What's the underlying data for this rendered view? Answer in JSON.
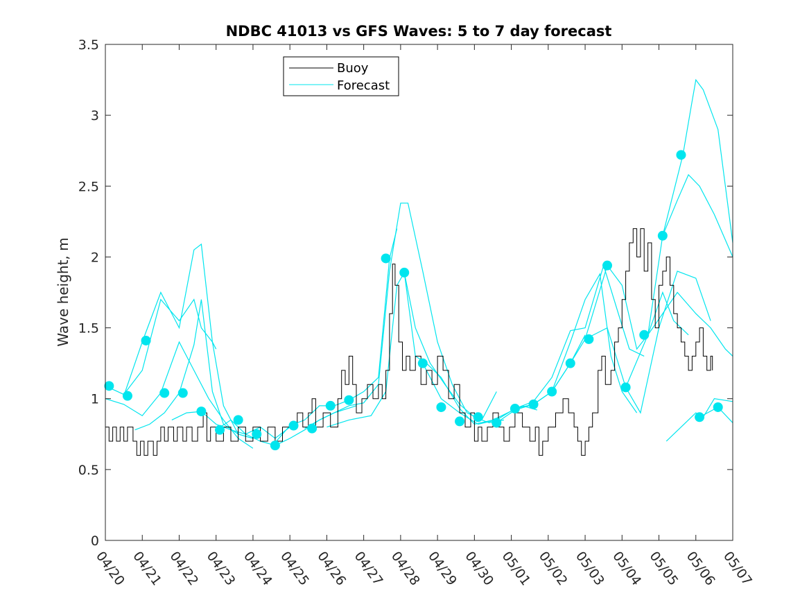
{
  "chart_data": {
    "type": "line",
    "title": "NDBC 41013 vs GFS Waves: 5 to 7 day forecast",
    "xlabel": "",
    "ylabel": "Wave height, m",
    "ylim": [
      0,
      3.5
    ],
    "yticks": [
      "0",
      "0.5",
      "1",
      "1.5",
      "2",
      "2.5",
      "3",
      "3.5"
    ],
    "xlim_days": [
      0,
      17
    ],
    "xticks": [
      "04/20",
      "04/21",
      "04/22",
      "04/23",
      "04/24",
      "04/25",
      "04/26",
      "04/27",
      "04/28",
      "04/29",
      "04/30",
      "05/01",
      "05/02",
      "05/03",
      "05/04",
      "05/05",
      "05/06",
      "05/07"
    ],
    "legend": {
      "position": "top-left",
      "entries": [
        {
          "name": "Buoy",
          "color": "#000000"
        },
        {
          "name": "Forecast",
          "color": "#00e5ee"
        }
      ]
    },
    "colors": {
      "buoy": "#000000",
      "forecast": "#00e5ee",
      "markers": "#00e5ee"
    },
    "buoy": [
      [
        0.0,
        0.8
      ],
      [
        0.1,
        0.7
      ],
      [
        0.2,
        0.8
      ],
      [
        0.3,
        0.7
      ],
      [
        0.4,
        0.8
      ],
      [
        0.5,
        0.7
      ],
      [
        0.6,
        0.8
      ],
      [
        0.75,
        0.7
      ],
      [
        0.85,
        0.6
      ],
      [
        0.95,
        0.7
      ],
      [
        1.05,
        0.6
      ],
      [
        1.15,
        0.7
      ],
      [
        1.3,
        0.6
      ],
      [
        1.4,
        0.7
      ],
      [
        1.5,
        0.8
      ],
      [
        1.6,
        0.7
      ],
      [
        1.7,
        0.8
      ],
      [
        1.85,
        0.7
      ],
      [
        1.95,
        0.8
      ],
      [
        2.1,
        0.7
      ],
      [
        2.2,
        0.8
      ],
      [
        2.35,
        0.7
      ],
      [
        2.5,
        0.8
      ],
      [
        2.65,
        0.9
      ],
      [
        2.75,
        0.7
      ],
      [
        2.85,
        0.8
      ],
      [
        3.0,
        0.7
      ],
      [
        3.2,
        0.8
      ],
      [
        3.4,
        0.7
      ],
      [
        3.6,
        0.8
      ],
      [
        3.8,
        0.7
      ],
      [
        4.0,
        0.8
      ],
      [
        4.2,
        0.7
      ],
      [
        4.4,
        0.8
      ],
      [
        4.6,
        0.7
      ],
      [
        4.8,
        0.8
      ],
      [
        5.0,
        0.8
      ],
      [
        5.2,
        0.9
      ],
      [
        5.35,
        0.8
      ],
      [
        5.5,
        0.9
      ],
      [
        5.6,
        1.0
      ],
      [
        5.7,
        0.8
      ],
      [
        5.9,
        0.9
      ],
      [
        6.1,
        0.8
      ],
      [
        6.3,
        1.0
      ],
      [
        6.4,
        1.2
      ],
      [
        6.5,
        1.1
      ],
      [
        6.6,
        1.3
      ],
      [
        6.7,
        1.1
      ],
      [
        6.8,
        0.9
      ],
      [
        6.95,
        1.0
      ],
      [
        7.1,
        1.1
      ],
      [
        7.25,
        1.0
      ],
      [
        7.4,
        1.1
      ],
      [
        7.5,
        1.0
      ],
      [
        7.6,
        1.2
      ],
      [
        7.7,
        1.6
      ],
      [
        7.78,
        1.95
      ],
      [
        7.85,
        1.8
      ],
      [
        7.95,
        1.4
      ],
      [
        8.05,
        1.2
      ],
      [
        8.15,
        1.3
      ],
      [
        8.25,
        1.2
      ],
      [
        8.4,
        1.3
      ],
      [
        8.55,
        1.1
      ],
      [
        8.7,
        1.2
      ],
      [
        8.85,
        1.1
      ],
      [
        9.0,
        1.3
      ],
      [
        9.15,
        1.2
      ],
      [
        9.3,
        1.0
      ],
      [
        9.45,
        1.1
      ],
      [
        9.6,
        0.9
      ],
      [
        9.75,
        0.8
      ],
      [
        9.9,
        0.9
      ],
      [
        10.0,
        0.7
      ],
      [
        10.1,
        0.8
      ],
      [
        10.2,
        0.7
      ],
      [
        10.35,
        0.8
      ],
      [
        10.5,
        0.9
      ],
      [
        10.65,
        0.8
      ],
      [
        10.8,
        0.7
      ],
      [
        10.95,
        0.8
      ],
      [
        11.1,
        0.9
      ],
      [
        11.3,
        0.8
      ],
      [
        11.5,
        0.7
      ],
      [
        11.65,
        0.8
      ],
      [
        11.75,
        0.6
      ],
      [
        11.85,
        0.7
      ],
      [
        12.0,
        0.8
      ],
      [
        12.2,
        0.9
      ],
      [
        12.4,
        1.0
      ],
      [
        12.55,
        0.9
      ],
      [
        12.7,
        0.8
      ],
      [
        12.8,
        0.7
      ],
      [
        12.9,
        0.6
      ],
      [
        13.0,
        0.7
      ],
      [
        13.1,
        0.8
      ],
      [
        13.2,
        0.9
      ],
      [
        13.35,
        1.2
      ],
      [
        13.45,
        1.3
      ],
      [
        13.55,
        1.1
      ],
      [
        13.7,
        1.2
      ],
      [
        13.8,
        1.4
      ],
      [
        13.9,
        1.5
      ],
      [
        14.0,
        1.7
      ],
      [
        14.1,
        1.9
      ],
      [
        14.2,
        2.1
      ],
      [
        14.3,
        2.2
      ],
      [
        14.4,
        2.0
      ],
      [
        14.5,
        2.2
      ],
      [
        14.6,
        1.9
      ],
      [
        14.7,
        2.1
      ],
      [
        14.8,
        1.7
      ],
      [
        14.9,
        1.5
      ],
      [
        15.0,
        1.8
      ],
      [
        15.1,
        1.9
      ],
      [
        15.2,
        2.0
      ],
      [
        15.3,
        1.8
      ],
      [
        15.4,
        1.6
      ],
      [
        15.5,
        1.5
      ],
      [
        15.6,
        1.4
      ],
      [
        15.7,
        1.3
      ],
      [
        15.8,
        1.2
      ],
      [
        15.9,
        1.3
      ],
      [
        16.0,
        1.4
      ],
      [
        16.1,
        1.5
      ],
      [
        16.2,
        1.3
      ],
      [
        16.3,
        1.2
      ],
      [
        16.4,
        1.3
      ],
      [
        16.45,
        1.2
      ]
    ],
    "forecast_series": [
      [
        [
          0.0,
          1.09
        ],
        [
          0.5,
          1.03
        ],
        [
          1.0,
          1.2
        ],
        [
          1.5,
          1.7
        ],
        [
          2.0,
          1.55
        ],
        [
          2.4,
          1.7
        ],
        [
          2.6,
          1.5
        ],
        [
          2.9,
          1.4
        ],
        [
          3.0,
          1.35
        ]
      ],
      [
        [
          0.5,
          1.02
        ],
        [
          1.0,
          1.4
        ],
        [
          1.5,
          1.75
        ],
        [
          2.0,
          1.5
        ],
        [
          2.4,
          2.05
        ],
        [
          2.6,
          2.09
        ],
        [
          2.9,
          1.4
        ],
        [
          3.2,
          0.95
        ],
        [
          3.6,
          0.75
        ],
        [
          4.0,
          0.72
        ]
      ],
      [
        [
          0.0,
          1.0
        ],
        [
          0.5,
          0.96
        ],
        [
          1.0,
          0.88
        ],
        [
          1.5,
          1.04
        ],
        [
          2.0,
          1.4
        ],
        [
          2.4,
          1.2
        ],
        [
          2.8,
          1.0
        ],
        [
          3.2,
          0.85
        ],
        [
          3.6,
          0.72
        ],
        [
          4.0,
          0.65
        ]
      ],
      [
        [
          0.8,
          0.78
        ],
        [
          1.2,
          0.82
        ],
        [
          1.6,
          0.9
        ],
        [
          2.0,
          1.04
        ],
        [
          2.4,
          1.38
        ],
        [
          2.6,
          1.7
        ],
        [
          2.9,
          1.05
        ],
        [
          3.2,
          0.82
        ],
        [
          3.6,
          0.75
        ],
        [
          4.0,
          0.72
        ]
      ],
      [
        [
          1.8,
          0.85
        ],
        [
          2.2,
          0.9
        ],
        [
          2.6,
          0.91
        ],
        [
          3.0,
          0.82
        ],
        [
          3.4,
          0.78
        ],
        [
          3.8,
          0.75
        ],
        [
          4.2,
          0.8
        ],
        [
          4.6,
          0.72
        ],
        [
          5.0,
          0.8
        ]
      ],
      [
        [
          3.0,
          0.78
        ],
        [
          3.4,
          0.85
        ],
        [
          3.8,
          0.75
        ],
        [
          4.2,
          0.7
        ],
        [
          4.6,
          0.67
        ],
        [
          5.0,
          0.72
        ],
        [
          5.4,
          0.78
        ],
        [
          5.8,
          0.85
        ],
        [
          6.2,
          0.9
        ],
        [
          6.8,
          0.95
        ]
      ],
      [
        [
          4.6,
          0.69
        ],
        [
          5.0,
          0.81
        ],
        [
          5.4,
          0.85
        ],
        [
          5.8,
          0.95
        ],
        [
          6.2,
          0.95
        ],
        [
          6.6,
          0.99
        ],
        [
          7.0,
          1.05
        ],
        [
          7.4,
          1.15
        ],
        [
          7.7,
          1.99
        ],
        [
          7.9,
          2.2
        ]
      ],
      [
        [
          5.4,
          0.79
        ],
        [
          5.8,
          0.85
        ],
        [
          6.2,
          0.9
        ],
        [
          6.6,
          0.95
        ],
        [
          7.0,
          0.97
        ],
        [
          7.4,
          1.1
        ],
        [
          7.7,
          1.9
        ],
        [
          8.0,
          2.38
        ],
        [
          8.2,
          2.38
        ],
        [
          8.6,
          1.9
        ],
        [
          9.0,
          1.4
        ],
        [
          9.4,
          1.1
        ],
        [
          9.8,
          0.9
        ],
        [
          10.2,
          0.85
        ],
        [
          10.6,
          1.05
        ]
      ],
      [
        [
          6.0,
          0.8
        ],
        [
          6.6,
          0.85
        ],
        [
          7.2,
          0.88
        ],
        [
          7.6,
          1.05
        ],
        [
          7.9,
          1.8
        ],
        [
          8.1,
          1.89
        ],
        [
          8.4,
          1.5
        ],
        [
          8.8,
          1.25
        ],
        [
          9.2,
          1.1
        ],
        [
          9.6,
          0.96
        ],
        [
          10.0,
          0.87
        ],
        [
          10.4,
          0.83
        ],
        [
          10.8,
          0.85
        ]
      ],
      [
        [
          8.1,
          1.89
        ],
        [
          8.4,
          1.3
        ],
        [
          8.7,
          1.25
        ],
        [
          9.1,
          1.15
        ],
        [
          9.6,
          0.93
        ],
        [
          10.0,
          0.82
        ],
        [
          10.5,
          0.85
        ],
        [
          10.9,
          0.9
        ],
        [
          11.3,
          0.95
        ],
        [
          11.7,
          0.92
        ]
      ],
      [
        [
          8.6,
          1.25
        ],
        [
          9.1,
          1.0
        ],
        [
          9.6,
          0.9
        ],
        [
          10.1,
          0.82
        ],
        [
          10.6,
          0.85
        ],
        [
          11.1,
          0.93
        ],
        [
          11.6,
          0.96
        ],
        [
          12.1,
          1.05
        ],
        [
          12.6,
          1.25
        ],
        [
          13.0,
          1.45
        ]
      ],
      [
        [
          10.6,
          0.83
        ],
        [
          11.1,
          0.92
        ],
        [
          11.6,
          0.96
        ],
        [
          12.1,
          1.05
        ],
        [
          12.6,
          1.4
        ],
        [
          13.0,
          1.7
        ],
        [
          13.4,
          1.88
        ],
        [
          13.7,
          1.3
        ],
        [
          14.0,
          1.05
        ],
        [
          14.4,
          0.9
        ]
      ],
      [
        [
          11.1,
          0.93
        ],
        [
          11.6,
          0.98
        ],
        [
          12.1,
          1.15
        ],
        [
          12.6,
          1.48
        ],
        [
          13.0,
          1.5
        ],
        [
          13.5,
          1.94
        ],
        [
          13.9,
          1.6
        ],
        [
          14.2,
          1.35
        ],
        [
          14.6,
          1.3
        ]
      ],
      [
        [
          12.1,
          1.05
        ],
        [
          12.6,
          1.25
        ],
        [
          13.0,
          1.42
        ],
        [
          13.6,
          1.94
        ],
        [
          14.0,
          1.8
        ],
        [
          14.4,
          1.35
        ],
        [
          14.7,
          1.45
        ],
        [
          15.1,
          1.75
        ],
        [
          15.4,
          1.55
        ],
        [
          15.8,
          1.45
        ]
      ],
      [
        [
          13.0,
          1.42
        ],
        [
          13.6,
          1.5
        ],
        [
          14.1,
          1.08
        ],
        [
          14.5,
          0.9
        ],
        [
          15.0,
          1.5
        ],
        [
          15.5,
          1.9
        ],
        [
          16.0,
          1.85
        ],
        [
          16.4,
          1.55
        ]
      ],
      [
        [
          14.1,
          1.08
        ],
        [
          14.7,
          1.45
        ],
        [
          15.1,
          1.6
        ],
        [
          15.5,
          1.75
        ],
        [
          16.0,
          1.6
        ],
        [
          16.4,
          1.5
        ],
        [
          16.8,
          1.35
        ],
        [
          17.0,
          1.3
        ]
      ],
      [
        [
          14.7,
          1.45
        ],
        [
          15.1,
          2.15
        ],
        [
          15.5,
          2.4
        ],
        [
          15.8,
          2.58
        ],
        [
          16.1,
          2.5
        ],
        [
          16.5,
          2.3
        ],
        [
          17.0,
          2.0
        ]
      ],
      [
        [
          15.1,
          2.15
        ],
        [
          15.65,
          2.72
        ],
        [
          15.9,
          3.1
        ],
        [
          16.0,
          3.25
        ],
        [
          16.2,
          3.18
        ],
        [
          16.6,
          2.9
        ],
        [
          17.0,
          2.1
        ]
      ],
      [
        [
          15.2,
          0.7
        ],
        [
          15.6,
          0.8
        ],
        [
          16.0,
          0.9
        ],
        [
          16.2,
          0.87
        ],
        [
          16.5,
          1.0
        ],
        [
          17.0,
          0.98
        ]
      ],
      [
        [
          16.1,
          0.87
        ],
        [
          16.6,
          0.94
        ],
        [
          17.0,
          0.83
        ]
      ]
    ],
    "forecast_points": [
      [
        0.1,
        1.09
      ],
      [
        0.6,
        1.02
      ],
      [
        1.1,
        1.41
      ],
      [
        1.6,
        1.04
      ],
      [
        2.1,
        1.04
      ],
      [
        2.6,
        0.91
      ],
      [
        3.1,
        0.78
      ],
      [
        3.6,
        0.85
      ],
      [
        4.1,
        0.75
      ],
      [
        4.6,
        0.67
      ],
      [
        5.1,
        0.81
      ],
      [
        5.6,
        0.79
      ],
      [
        6.1,
        0.95
      ],
      [
        6.6,
        0.99
      ],
      [
        7.6,
        1.99
      ],
      [
        8.1,
        1.89
      ],
      [
        8.6,
        1.25
      ],
      [
        9.1,
        0.94
      ],
      [
        9.6,
        0.84
      ],
      [
        10.1,
        0.87
      ],
      [
        10.6,
        0.83
      ],
      [
        11.1,
        0.93
      ],
      [
        11.6,
        0.96
      ],
      [
        12.1,
        1.05
      ],
      [
        12.6,
        1.25
      ],
      [
        13.1,
        1.42
      ],
      [
        13.6,
        1.94
      ],
      [
        14.1,
        1.08
      ],
      [
        14.6,
        1.45
      ],
      [
        15.1,
        2.15
      ],
      [
        15.6,
        2.72
      ],
      [
        16.1,
        0.87
      ],
      [
        16.6,
        0.94
      ]
    ]
  }
}
